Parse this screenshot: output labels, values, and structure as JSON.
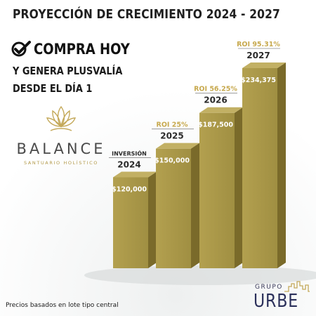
{
  "title": "PROYECCIÓN DE CRECIMIENTO 2024 - 2027",
  "headline": "COMPRA HOY",
  "subline_1": "Y GENERA PLUSVALÍA",
  "subline_2": "DESDE EL DÍA 1",
  "logo": {
    "name": "BALANCE",
    "tagline": "SANTUARIO HOLÍSTICO",
    "icon": "lotus-icon"
  },
  "footer_note": "Precios basados en lote tipo central",
  "brand": {
    "group_label": "GRUPO",
    "name": "URBE",
    "icon": "skyline-icon"
  },
  "colors": {
    "bar_front": "#a08f42",
    "bar_side": "#7a6a2a",
    "bar_top": "#c2b064",
    "label_roi": "#c7a94e",
    "label_year": "#2a2a2a",
    "value_text": "#ffffff"
  },
  "chart_data": {
    "type": "bar",
    "categories": [
      "2024",
      "2025",
      "2026",
      "2027"
    ],
    "values": [
      120000,
      150000,
      187500,
      234375
    ],
    "value_labels": [
      "$120,000",
      "$150,000",
      "$187,500",
      "$234,375"
    ],
    "top_labels": [
      "INVERSIÓN",
      "ROI 25%",
      "ROI 56.25%",
      "ROI 95.31%"
    ],
    "roi_percent": [
      0,
      25,
      56.25,
      95.31
    ],
    "title": "PROYECCIÓN DE CRECIMIENTO 2024 - 2027",
    "xlabel": "",
    "ylabel": "",
    "grid": false,
    "legend": "none"
  }
}
